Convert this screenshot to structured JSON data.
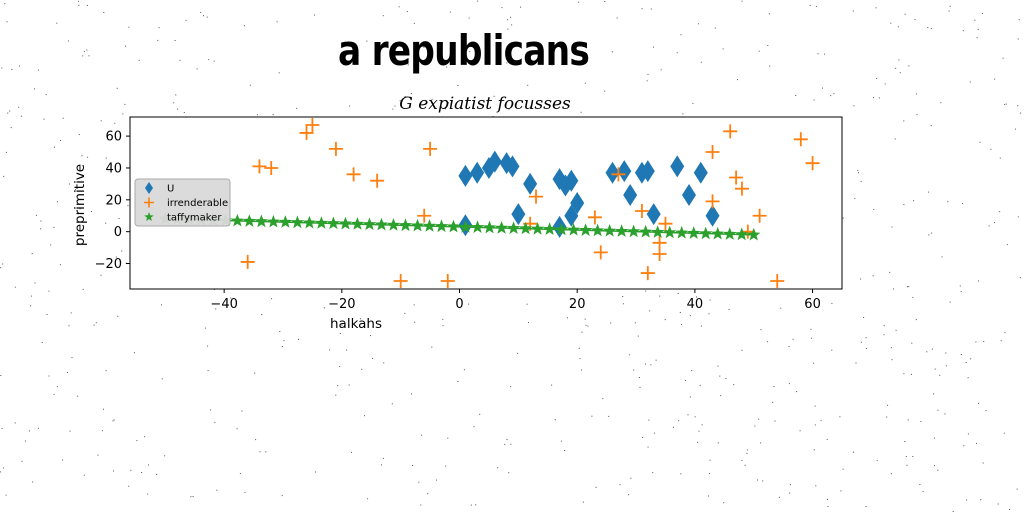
{
  "header": {
    "title": "a republicans"
  },
  "chart_data": {
    "type": "scatter",
    "title": "G expiatist focusses",
    "xlabel": "halkahs",
    "ylabel": "preprimitive",
    "xlim": [
      -56,
      65
    ],
    "ylim": [
      -36,
      72
    ],
    "xticks": [
      -40,
      -20,
      0,
      20,
      40,
      60
    ],
    "yticks": [
      -20,
      0,
      20,
      40,
      60
    ],
    "grid": false,
    "legend_position": "center-left",
    "series": [
      {
        "name": "U",
        "marker": "diamond",
        "color": "#1f77b4",
        "points": [
          [
            1,
            35
          ],
          [
            1,
            4
          ],
          [
            3,
            37
          ],
          [
            5,
            40
          ],
          [
            6,
            44
          ],
          [
            8,
            43
          ],
          [
            9,
            41
          ],
          [
            10,
            11
          ],
          [
            12,
            30
          ],
          [
            17,
            33
          ],
          [
            17,
            3
          ],
          [
            18,
            29
          ],
          [
            19,
            32
          ],
          [
            19,
            10
          ],
          [
            20,
            18
          ],
          [
            26,
            37
          ],
          [
            28,
            38
          ],
          [
            29,
            23
          ],
          [
            31,
            37
          ],
          [
            32,
            38
          ],
          [
            33,
            11
          ],
          [
            37,
            41
          ],
          [
            39,
            23
          ],
          [
            41,
            37
          ],
          [
            43,
            10
          ]
        ]
      },
      {
        "name": "irrenderable",
        "marker": "plus",
        "color": "#ff7f0e",
        "points": [
          [
            -36,
            -19
          ],
          [
            -34,
            41
          ],
          [
            -32,
            40
          ],
          [
            -26,
            62
          ],
          [
            -25,
            67
          ],
          [
            -21,
            52
          ],
          [
            -18,
            36
          ],
          [
            -14,
            32
          ],
          [
            -10,
            -31
          ],
          [
            -6,
            10
          ],
          [
            -5,
            52
          ],
          [
            -2,
            -31
          ],
          [
            12,
            5
          ],
          [
            13,
            22
          ],
          [
            23,
            9
          ],
          [
            24,
            -13
          ],
          [
            27,
            36
          ],
          [
            31,
            13
          ],
          [
            32,
            -26
          ],
          [
            34,
            -7
          ],
          [
            34,
            -14
          ],
          [
            35,
            5
          ],
          [
            43,
            50
          ],
          [
            43,
            19
          ],
          [
            46,
            63
          ],
          [
            47,
            34
          ],
          [
            48,
            27
          ],
          [
            49,
            0
          ],
          [
            51,
            10
          ],
          [
            54,
            -31
          ],
          [
            58,
            58
          ],
          [
            60,
            43
          ]
        ]
      },
      {
        "name": "taffymaker",
        "marker": "star",
        "color": "#2ca02c",
        "line": {
          "x_start": -50,
          "x_end": 50,
          "y_start": 8,
          "y_end": -2,
          "count": 50
        }
      }
    ]
  }
}
